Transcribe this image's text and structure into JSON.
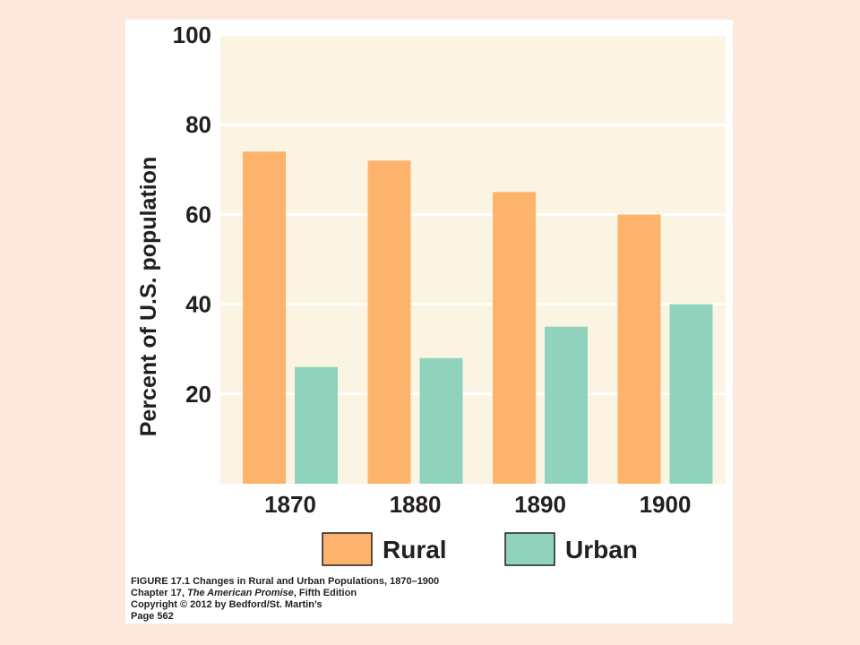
{
  "chart_data": {
    "type": "bar",
    "categories": [
      "1870",
      "1880",
      "1890",
      "1900"
    ],
    "series": [
      {
        "name": "Rural",
        "values": [
          74,
          72,
          65,
          60
        ]
      },
      {
        "name": "Urban",
        "values": [
          26,
          28,
          35,
          40
        ]
      }
    ],
    "ylabel": "Percent of U.S. population",
    "ylim": [
      0,
      100
    ],
    "yticks": [
      20,
      40,
      60,
      80,
      100
    ],
    "grid": true,
    "legend": "bottom",
    "colors": {
      "plot_background": "#fbf4e3",
      "gridline": "#ffffff",
      "Rural": "#fdb36b",
      "Urban": "#8fd3bd",
      "text": "#231f20",
      "page_background": "#fce9dc"
    }
  },
  "caption": {
    "figure": "FIGURE 17.1  Changes in Rural and Urban Populations, 1870–1900",
    "chapter_prefix": "Chapter 17, ",
    "book_title": "The American Promise",
    "chapter_suffix": ", Fifth Edition",
    "copyright": "Copyright © 2012 by Bedford/St. Martin’s",
    "page": "Page 562"
  }
}
